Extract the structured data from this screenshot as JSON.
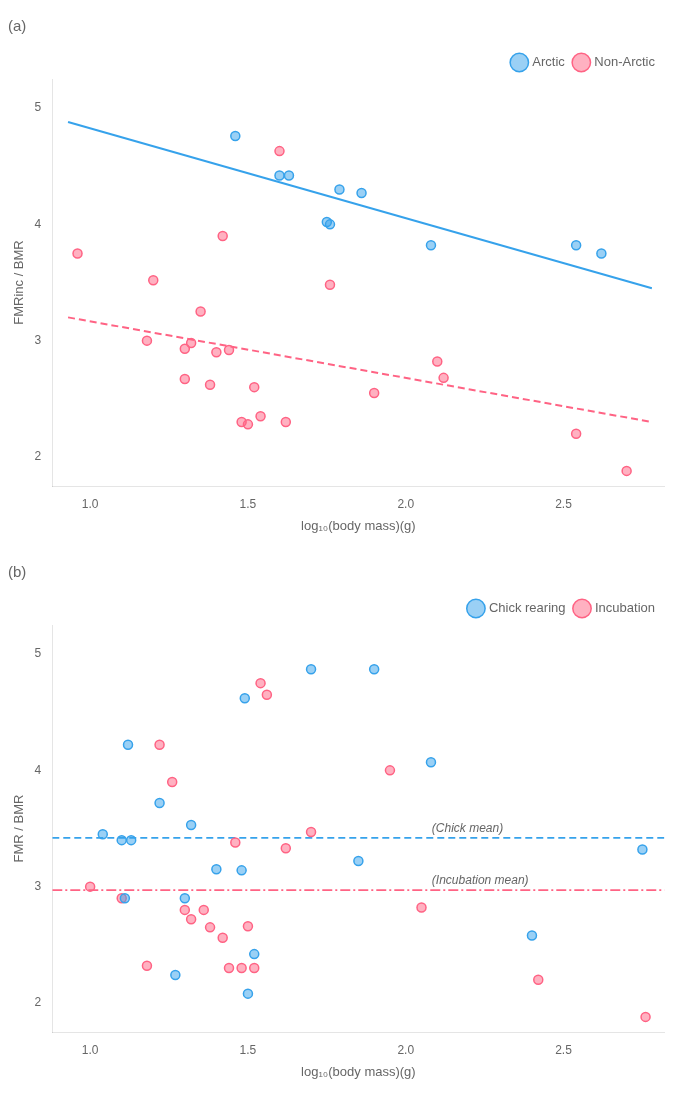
{
  "chart_data": [
    {
      "type": "scatter",
      "title": "(a)",
      "xlabel": "log₁₀(body mass)(g)",
      "ylabel": "FMRinc / BMR",
      "xlim": [
        0.88,
        2.82
      ],
      "ylim": [
        1.75,
        5.25
      ],
      "xticks": [
        {
          "value": 1.0,
          "label": "1.0"
        },
        1.5,
        {
          "value": 2.0,
          "label": "2.0"
        },
        2.5
      ],
      "yticks": [
        2,
        3,
        4,
        5
      ],
      "grid": false,
      "legend": "upper right",
      "series": [
        {
          "name": "Arctic",
          "marker": "circle",
          "line_style": "solid",
          "x": [
            1.46,
            1.6,
            1.63,
            1.75,
            1.76,
            1.79,
            1.86,
            2.08,
            2.54,
            2.62
          ],
          "values": [
            4.76,
            4.42,
            4.42,
            4.02,
            4.0,
            4.3,
            4.27,
            3.82,
            3.82,
            3.75
          ],
          "fit_x": [
            0.93,
            2.78
          ],
          "fit_values": [
            4.88,
            3.45
          ]
        },
        {
          "name": "Non-Arctic",
          "marker": "circle",
          "line_style": "dashed",
          "x": [
            0.96,
            1.18,
            1.2,
            1.3,
            1.3,
            1.32,
            1.35,
            1.38,
            1.4,
            1.42,
            1.44,
            1.48,
            1.5,
            1.52,
            1.54,
            1.6,
            1.62,
            1.76,
            1.9,
            2.1,
            2.12,
            2.54,
            2.7
          ],
          "values": [
            3.75,
            3.0,
            3.52,
            2.93,
            2.67,
            2.98,
            3.25,
            2.62,
            2.9,
            3.9,
            2.92,
            2.3,
            2.28,
            2.6,
            2.35,
            4.63,
            2.3,
            3.48,
            2.55,
            2.82,
            2.68,
            2.2,
            1.88
          ],
          "fit_x": [
            0.93,
            2.78
          ],
          "fit_values": [
            3.2,
            2.3
          ]
        }
      ]
    },
    {
      "type": "scatter",
      "title": "(b)",
      "xlabel": "log₁₀(body mass)(g)",
      "ylabel": "FMR / BMR",
      "xlim": [
        0.88,
        2.82
      ],
      "ylim": [
        1.75,
        5.25
      ],
      "xticks": [
        {
          "value": 1.0,
          "label": "1.0"
        },
        1.5,
        {
          "value": 2.0,
          "label": "2.0"
        },
        2.5
      ],
      "yticks": [
        2,
        3,
        4,
        5
      ],
      "grid": false,
      "legend": "upper right",
      "series": [
        {
          "name": "Chick rearing",
          "marker": "circle",
          "line_style": "dashed",
          "x": [
            1.04,
            1.1,
            1.11,
            1.12,
            1.13,
            1.22,
            1.27,
            1.3,
            1.32,
            1.4,
            1.48,
            1.49,
            1.5,
            1.52,
            1.7,
            1.85,
            1.9,
            2.08,
            2.4,
            2.75
          ],
          "values": [
            3.45,
            3.4,
            2.9,
            4.22,
            3.4,
            3.72,
            2.24,
            2.9,
            3.53,
            3.15,
            3.14,
            4.62,
            2.08,
            2.42,
            4.87,
            3.22,
            4.87,
            4.07,
            2.58,
            3.32
          ],
          "mean": 3.42,
          "mean_label": "(Chick mean)"
        },
        {
          "name": "Incubation",
          "marker": "circle",
          "line_style": "dashdot",
          "x": [
            1.0,
            1.1,
            1.18,
            1.22,
            1.26,
            1.3,
            1.32,
            1.36,
            1.38,
            1.42,
            1.44,
            1.46,
            1.48,
            1.5,
            1.52,
            1.54,
            1.56,
            1.62,
            1.7,
            1.95,
            2.05,
            2.42,
            2.76
          ],
          "values": [
            3.0,
            2.9,
            2.32,
            4.22,
            3.9,
            2.8,
            2.72,
            2.8,
            2.65,
            2.56,
            2.3,
            3.38,
            2.3,
            2.66,
            2.3,
            4.75,
            4.65,
            3.33,
            3.47,
            4.0,
            2.82,
            2.2,
            1.88
          ],
          "mean": 2.97,
          "mean_label": "(Incubation mean)"
        }
      ]
    }
  ]
}
